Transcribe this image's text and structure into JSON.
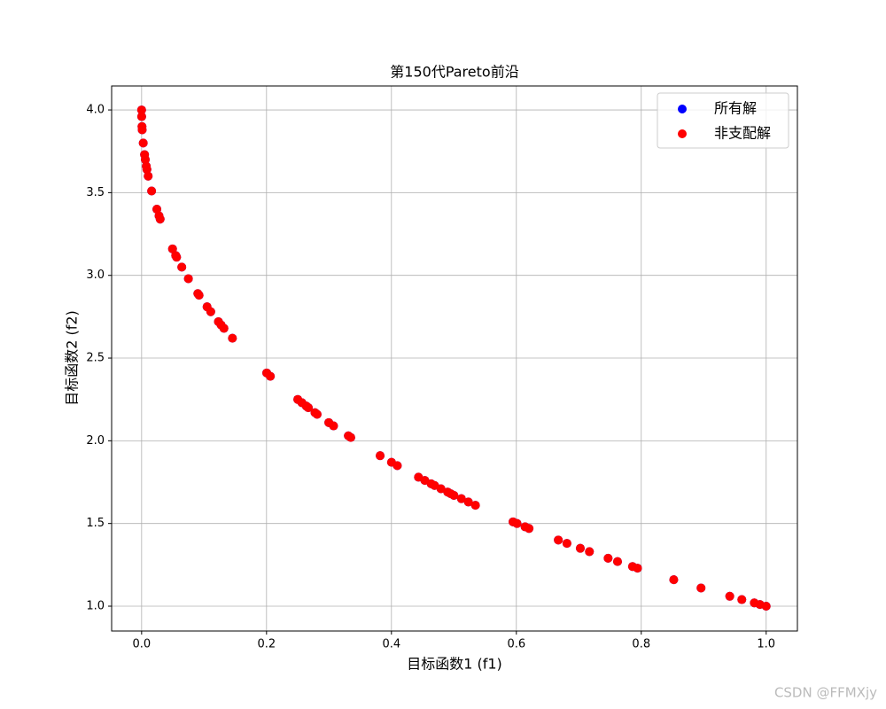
{
  "chart_data": {
    "type": "scatter",
    "title": "第150代Pareto前沿",
    "x_label": "目标函数1 (f1)",
    "y_label": "目标函数2 (f2)",
    "x": [
      0,
      0.0001,
      0.0006,
      0.0009,
      0.0026,
      0.0047,
      0.0059,
      0.0075,
      0.0085,
      0.0105,
      0.016,
      0.0244,
      0.0279,
      0.0297,
      0.0495,
      0.0546,
      0.056,
      0.0643,
      0.0749,
      0.09,
      0.092,
      0.1048,
      0.1107,
      0.123,
      0.1273,
      0.1318,
      0.1454,
      0.2003,
      0.2061,
      0.25,
      0.2567,
      0.2636,
      0.267,
      0.2776,
      0.281,
      0.2997,
      0.3073,
      0.331,
      0.3349,
      0.3819,
      0.4001,
      0.4094,
      0.4433,
      0.4535,
      0.4636,
      0.469,
      0.4793,
      0.49,
      0.495,
      0.5,
      0.512,
      0.5232,
      0.5345,
      0.5947,
      0.6011,
      0.614,
      0.6203,
      0.6672,
      0.681,
      0.7024,
      0.717,
      0.7469,
      0.762,
      0.786,
      0.794,
      0.852,
      0.8957,
      0.9417,
      0.961,
      0.981,
      0.99,
      1.0
    ],
    "series": [
      {
        "name": "所有解",
        "color": "#0000ff",
        "values": [
          4.0,
          3.96,
          3.9,
          3.88,
          3.8,
          3.73,
          3.7,
          3.66,
          3.64,
          3.6,
          3.51,
          3.4,
          3.36,
          3.34,
          3.16,
          3.12,
          3.11,
          3.05,
          2.98,
          2.89,
          2.88,
          2.81,
          2.78,
          2.72,
          2.7,
          2.68,
          2.62,
          2.41,
          2.39,
          2.25,
          2.23,
          2.21,
          2.2,
          2.17,
          2.16,
          2.11,
          2.09,
          2.03,
          2.02,
          1.91,
          1.87,
          1.85,
          1.78,
          1.76,
          1.74,
          1.73,
          1.71,
          1.69,
          1.68,
          1.67,
          1.65,
          1.63,
          1.61,
          1.51,
          1.5,
          1.48,
          1.47,
          1.4,
          1.38,
          1.35,
          1.33,
          1.29,
          1.27,
          1.24,
          1.23,
          1.16,
          1.11,
          1.06,
          1.04,
          1.02,
          1.01,
          1.0
        ]
      },
      {
        "name": "非支配解",
        "color": "#ff0000",
        "values": [
          4.0,
          3.96,
          3.9,
          3.88,
          3.8,
          3.73,
          3.7,
          3.66,
          3.64,
          3.6,
          3.51,
          3.4,
          3.36,
          3.34,
          3.16,
          3.12,
          3.11,
          3.05,
          2.98,
          2.89,
          2.88,
          2.81,
          2.78,
          2.72,
          2.7,
          2.68,
          2.62,
          2.41,
          2.39,
          2.25,
          2.23,
          2.21,
          2.2,
          2.17,
          2.16,
          2.11,
          2.09,
          2.03,
          2.02,
          1.91,
          1.87,
          1.85,
          1.78,
          1.76,
          1.74,
          1.73,
          1.71,
          1.69,
          1.68,
          1.67,
          1.65,
          1.63,
          1.61,
          1.51,
          1.5,
          1.48,
          1.47,
          1.4,
          1.38,
          1.35,
          1.33,
          1.29,
          1.27,
          1.24,
          1.23,
          1.16,
          1.11,
          1.06,
          1.04,
          1.02,
          1.01,
          1.0
        ]
      }
    ],
    "xlim": [
      -0.048,
      1.05
    ],
    "ylim": [
      0.85,
      4.145
    ],
    "xticks": [
      {
        "value": 0,
        "label": "0.0"
      },
      0.2,
      0.4,
      0.6,
      0.8,
      {
        "value": 1,
        "label": "1.0"
      }
    ],
    "yticks": [
      {
        "value": 1,
        "label": "1.0"
      },
      1.5,
      {
        "value": 2,
        "label": "2.0"
      },
      2.5,
      {
        "value": 3,
        "label": "3.0"
      },
      3.5,
      {
        "value": 4,
        "label": "4.0"
      }
    ],
    "grid": true,
    "legend": "upper right"
  },
  "watermark": "CSDN @FFMXjy"
}
